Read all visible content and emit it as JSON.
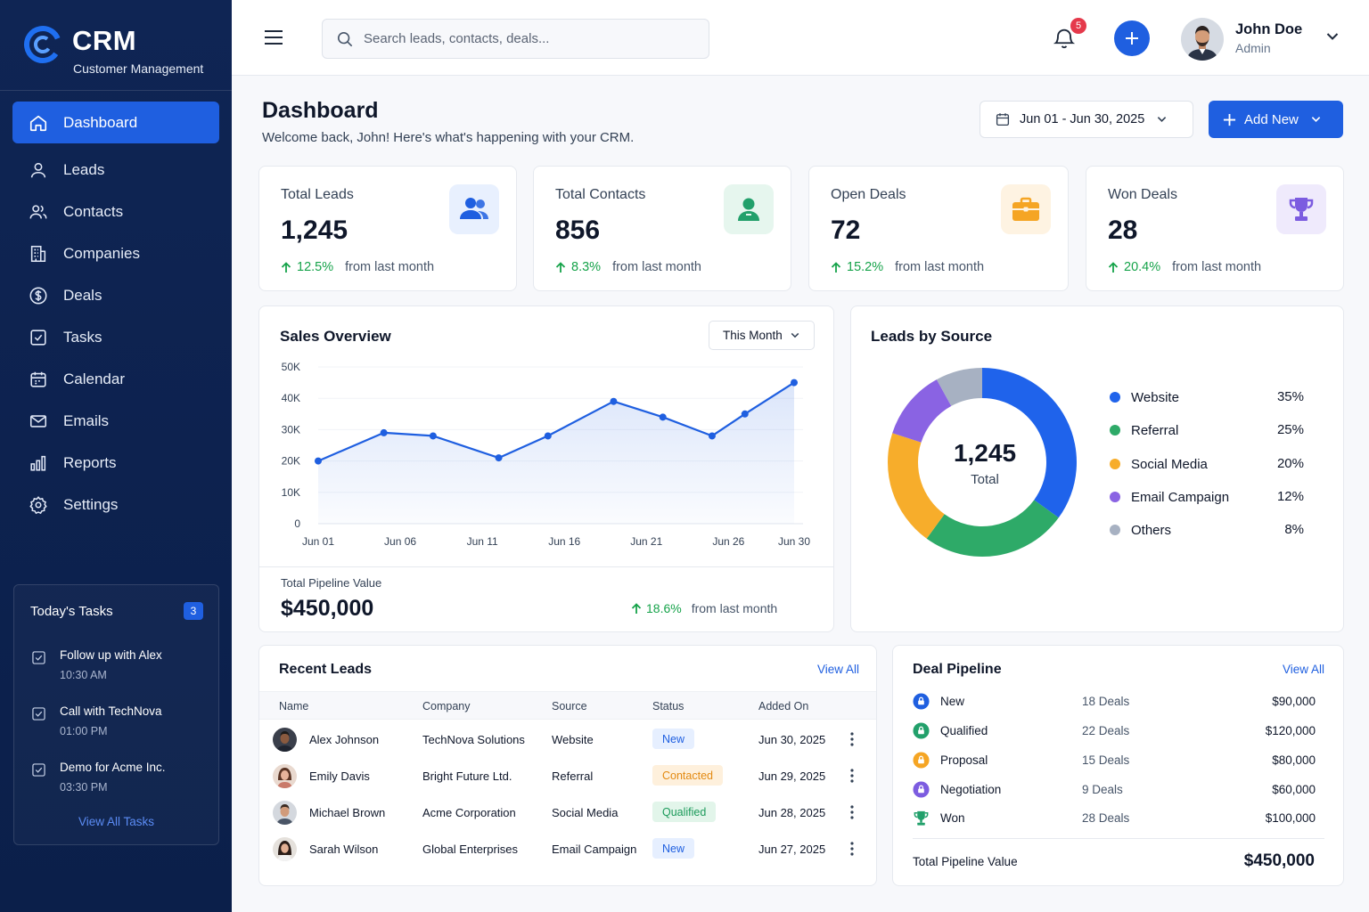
{
  "brand": {
    "name": "CRM",
    "subtitle": "Customer Management"
  },
  "nav": [
    {
      "label": "Dashboard",
      "icon": "home-icon",
      "active": true
    },
    {
      "label": "Leads",
      "icon": "user-icon"
    },
    {
      "label": "Contacts",
      "icon": "users-icon"
    },
    {
      "label": "Companies",
      "icon": "building-icon"
    },
    {
      "label": "Deals",
      "icon": "dollar-icon"
    },
    {
      "label": "Tasks",
      "icon": "checkbox-icon"
    },
    {
      "label": "Calendar",
      "icon": "calendar-icon"
    },
    {
      "label": "Emails",
      "icon": "mail-icon"
    },
    {
      "label": "Reports",
      "icon": "bar-chart-icon"
    },
    {
      "label": "Settings",
      "icon": "gear-icon"
    }
  ],
  "today_tasks": {
    "title": "Today's Tasks",
    "count": "3",
    "items": [
      {
        "title": "Follow up with Alex",
        "time": "10:30 AM"
      },
      {
        "title": "Call with TechNova",
        "time": "01:00 PM"
      },
      {
        "title": "Demo for Acme Inc.",
        "time": "03:30 PM"
      }
    ],
    "view_all": "View All Tasks"
  },
  "header": {
    "search_placeholder": "Search leads, contacts, deals...",
    "notification_count": "5",
    "user": {
      "name": "John Doe",
      "role": "Admin"
    }
  },
  "page": {
    "title": "Dashboard",
    "subtitle": "Welcome back, John! Here's what's happening with your CRM.",
    "date_range": "Jun 01 - Jun 30, 2025",
    "add_new": "Add New"
  },
  "stats": [
    {
      "label": "Total Leads",
      "value": "1,245",
      "change": "12.5%",
      "from": "from last month",
      "icon": "users-icon",
      "color": "#1f5fe0",
      "bg": "#e8f0fe"
    },
    {
      "label": "Total Contacts",
      "value": "856",
      "change": "8.3%",
      "from": "from last month",
      "icon": "contact-icon",
      "color": "#22a06b",
      "bg": "#e6f6ee"
    },
    {
      "label": "Open Deals",
      "value": "72",
      "change": "15.2%",
      "from": "from last month",
      "icon": "briefcase-icon",
      "color": "#f5a524",
      "bg": "#fef3e2"
    },
    {
      "label": "Won Deals",
      "value": "28",
      "change": "20.4%",
      "from": "from last month",
      "icon": "trophy-icon",
      "color": "#7c5ce0",
      "bg": "#efeafc"
    }
  ],
  "sales_overview": {
    "title": "Sales Overview",
    "period": "This Month",
    "pipeline_label": "Total Pipeline Value",
    "pipeline_value": "$450,000",
    "pipeline_change": "18.6%",
    "pipeline_from": "from last month"
  },
  "chart_data": {
    "type": "area",
    "title": "Sales Overview",
    "x_ticks": [
      "Jun 01",
      "Jun 06",
      "Jun 11",
      "Jun 16",
      "Jun 21",
      "Jun 26",
      "Jun 30"
    ],
    "y_ticks": [
      "0",
      "10K",
      "20K",
      "30K",
      "40K",
      "50K"
    ],
    "ylim": [
      0,
      50000
    ],
    "points": [
      {
        "x": "Jun 01",
        "y": 20000
      },
      {
        "x": "Jun 05",
        "y": 29000
      },
      {
        "x": "Jun 08",
        "y": 28000
      },
      {
        "x": "Jun 12",
        "y": 21000
      },
      {
        "x": "Jun 15",
        "y": 28000
      },
      {
        "x": "Jun 19",
        "y": 39000
      },
      {
        "x": "Jun 22",
        "y": 34000
      },
      {
        "x": "Jun 25",
        "y": 28000
      },
      {
        "x": "Jun 27",
        "y": 35000
      },
      {
        "x": "Jun 30",
        "y": 45000
      }
    ],
    "color": "#1f5fe0"
  },
  "leads_by_source": {
    "title": "Leads by Source",
    "total": "1,245",
    "total_label": "Total",
    "items": [
      {
        "label": "Website",
        "value": 35,
        "pct": "35%",
        "color": "#1f63eb"
      },
      {
        "label": "Referral",
        "value": 25,
        "pct": "25%",
        "color": "#2eaa68"
      },
      {
        "label": "Social Media",
        "value": 20,
        "pct": "20%",
        "color": "#f7ad2b"
      },
      {
        "label": "Email Campaign",
        "value": 12,
        "pct": "12%",
        "color": "#8a63e3"
      },
      {
        "label": "Others",
        "value": 8,
        "pct": "8%",
        "color": "#a7b1c2"
      }
    ]
  },
  "recent_leads": {
    "title": "Recent Leads",
    "view_all": "View All",
    "columns": [
      "Name",
      "Company",
      "Source",
      "Status",
      "Added On"
    ],
    "rows": [
      {
        "name": "Alex Johnson",
        "company": "TechNova Solutions",
        "source": "Website",
        "status": "New",
        "status_type": "new",
        "added": "Jun 30, 2025"
      },
      {
        "name": "Emily Davis",
        "company": "Bright Future Ltd.",
        "source": "Referral",
        "status": "Contacted",
        "status_type": "contacted",
        "added": "Jun 29, 2025"
      },
      {
        "name": "Michael Brown",
        "company": "Acme Corporation",
        "source": "Social Media",
        "status": "Qualified",
        "status_type": "qualified",
        "added": "Jun 28, 2025"
      },
      {
        "name": "Sarah Wilson",
        "company": "Global Enterprises",
        "source": "Email Campaign",
        "status": "New",
        "status_type": "new",
        "added": "Jun 27, 2025"
      }
    ]
  },
  "deal_pipeline": {
    "title": "Deal Pipeline",
    "view_all": "View All",
    "stages": [
      {
        "name": "New",
        "deals": "18 Deals",
        "value": "$90,000",
        "color": "#1f5fe0"
      },
      {
        "name": "Qualified",
        "deals": "22 Deals",
        "value": "$120,000",
        "color": "#22a06b"
      },
      {
        "name": "Proposal",
        "deals": "15 Deals",
        "value": "$80,000",
        "color": "#f5a524"
      },
      {
        "name": "Negotiation",
        "deals": "9 Deals",
        "value": "$60,000",
        "color": "#7c5ce0"
      },
      {
        "name": "Won",
        "deals": "28 Deals",
        "value": "$100,000",
        "color": "#22a06b",
        "icon": "trophy-icon"
      }
    ],
    "total_label": "Total Pipeline Value",
    "total_value": "$450,000"
  }
}
